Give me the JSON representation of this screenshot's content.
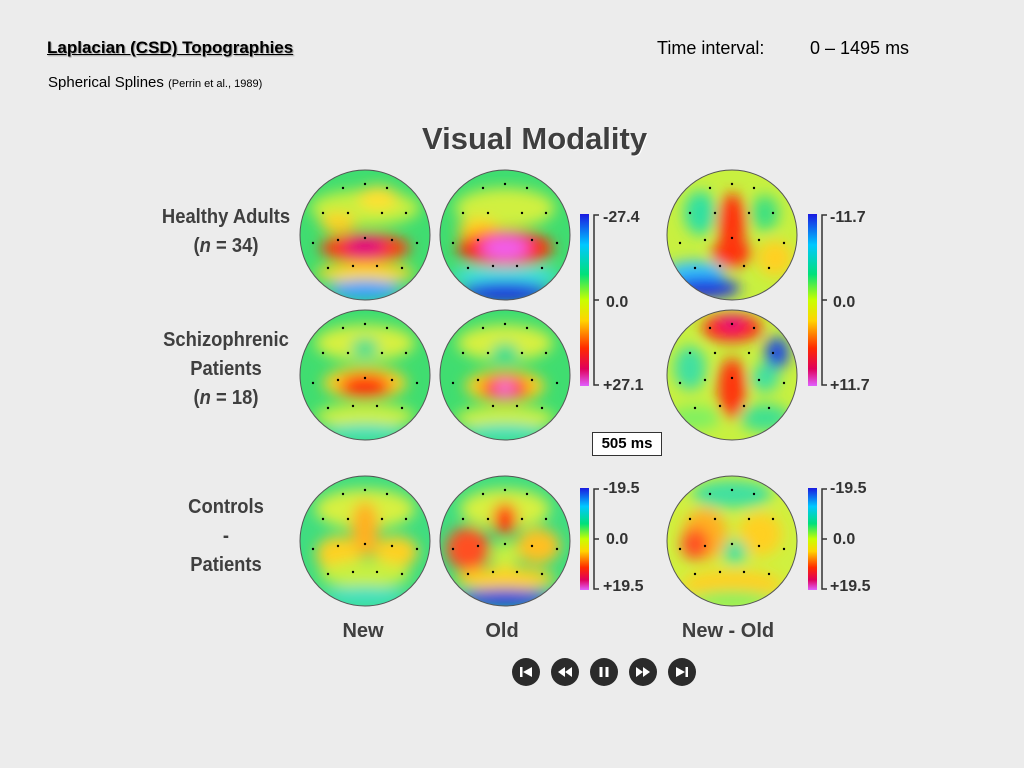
{
  "header": {
    "title": "Laplacian (CSD) Topographies",
    "subtitle": "Spherical Splines",
    "subtitle_ref": "(Perrin et al., 1989)",
    "time_label": "Time interval:",
    "time_value": "0 – 1495 ms"
  },
  "panel": {
    "title": "Visual Modality",
    "groups": {
      "healthy_line1": "Healthy Adults",
      "healthy_n_prefix": "(",
      "healthy_n_var": "n",
      "healthy_n_rest": " = 34)",
      "schizo_line1": "Schizophrenic",
      "schizo_line2": "Patients",
      "schizo_n_prefix": "(",
      "schizo_n_var": "n",
      "schizo_n_rest": " = 18)",
      "diff_line1": "Controls",
      "diff_line2": "-",
      "diff_line3": "Patients"
    },
    "columns": [
      "New",
      "Old",
      "New - Old"
    ],
    "current_time": "505 ms",
    "scales": {
      "top_left": {
        "max": "-27.4",
        "mid": "0.0",
        "min": "+27.1"
      },
      "top_right": {
        "max": "-11.7",
        "mid": "0.0",
        "min": "+11.7"
      },
      "bottom_left": {
        "max": "-19.5",
        "mid": "0.0",
        "min": "+19.5"
      },
      "bottom_right": {
        "max": "-19.5",
        "mid": "0.0",
        "min": "+19.5"
      }
    }
  },
  "playback": {
    "controls": [
      "skip-to-start-icon",
      "rewind-icon",
      "pause-icon",
      "fast-forward-icon",
      "skip-to-end-icon"
    ]
  },
  "colors": {
    "background": "#ececec",
    "label_text": "#3f3f3f",
    "control_fill": "#2b2b2b"
  }
}
